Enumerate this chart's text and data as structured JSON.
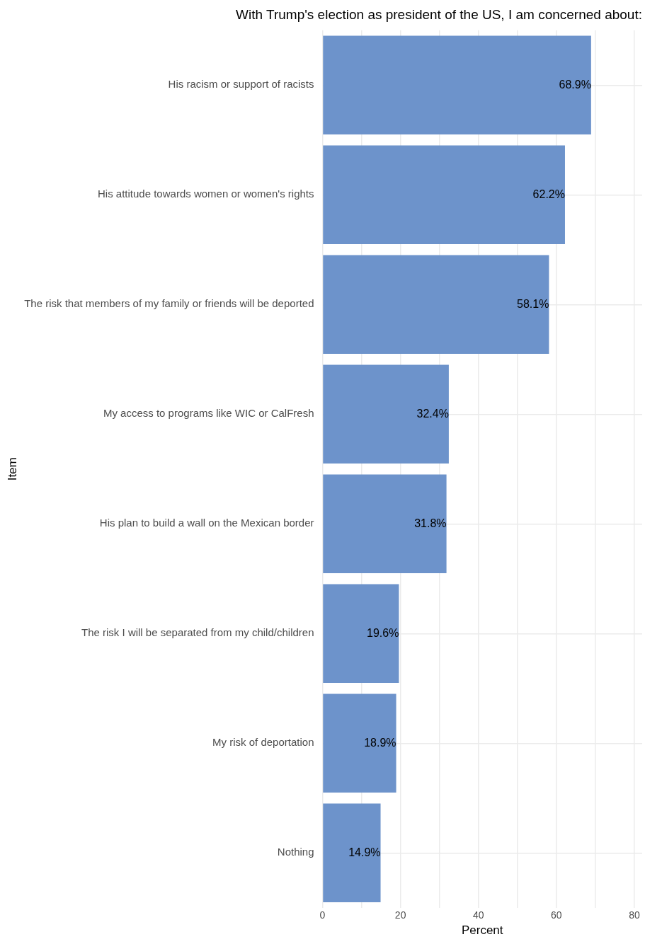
{
  "chart_data": {
    "type": "bar",
    "orientation": "horizontal",
    "title": "With Trump's election as president of the US, I am concerned about:",
    "xlabel": "Percent",
    "ylabel": "Item",
    "categories": [
      "His racism or support of racists",
      "His attitude towards women or women's rights",
      "The risk that members of my family or friends will be deported",
      "My access to programs like WIC or CalFresh",
      "His plan to build a wall on the Mexican border",
      "The risk I will be separated from my child/children",
      "My risk of deportation",
      "Nothing"
    ],
    "values": [
      68.9,
      62.2,
      58.1,
      32.4,
      31.8,
      19.6,
      18.9,
      14.9
    ],
    "value_labels": [
      "68.9%",
      "62.2%",
      "58.1%",
      "32.4%",
      "31.8%",
      "19.6%",
      "18.9%",
      "14.9%"
    ],
    "color": "#6d93cb",
    "xlim": [
      0,
      82
    ],
    "xticks": [
      0,
      {
        "value": 10,
        "label": null
      },
      20,
      {
        "value": 30,
        "label": null
      },
      40,
      {
        "value": 50,
        "label": null
      },
      60,
      {
        "value": 70,
        "label": null
      },
      80
    ],
    "grid": true,
    "legend": false
  }
}
